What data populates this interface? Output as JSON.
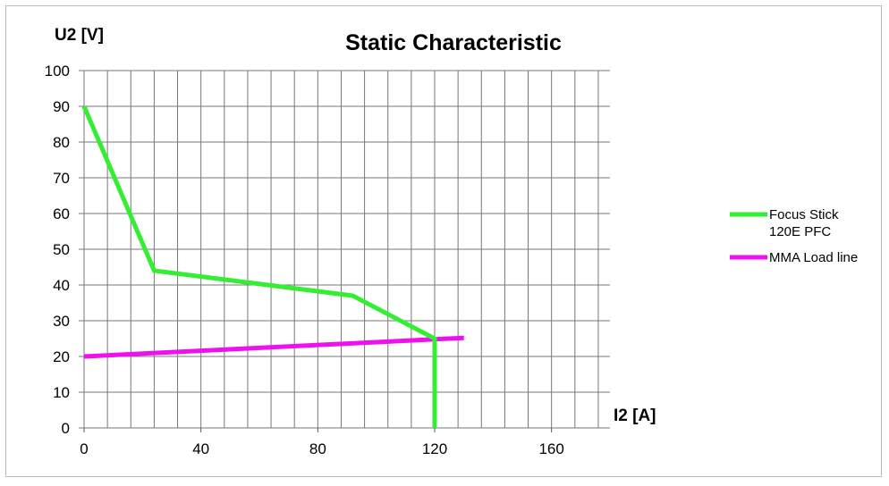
{
  "chart_data": {
    "type": "line",
    "title": "Static Characteristic",
    "xlabel": "I2 [A]",
    "ylabel": "U2 [V]",
    "xlim": [
      0,
      180
    ],
    "ylim": [
      0,
      100
    ],
    "x_ticks": [
      0,
      40,
      80,
      120,
      160
    ],
    "y_ticks": [
      0,
      10,
      20,
      30,
      40,
      50,
      60,
      70,
      80,
      90,
      100
    ],
    "x_grid_step": 8,
    "grid": true,
    "legend_position": "right",
    "series": [
      {
        "name": "Focus Stick 120E PFC",
        "legend_lines": [
          "Focus Stick",
          "120E PFC"
        ],
        "color": "#33ee33",
        "points": [
          [
            0,
            90
          ],
          [
            24,
            44
          ],
          [
            92,
            37
          ],
          [
            120,
            25
          ],
          [
            120,
            0
          ]
        ]
      },
      {
        "name": "MMA Load line",
        "legend_lines": [
          "MMA Load line"
        ],
        "color": "#ee11ee",
        "points": [
          [
            0,
            20
          ],
          [
            130,
            25.2
          ]
        ]
      }
    ]
  }
}
